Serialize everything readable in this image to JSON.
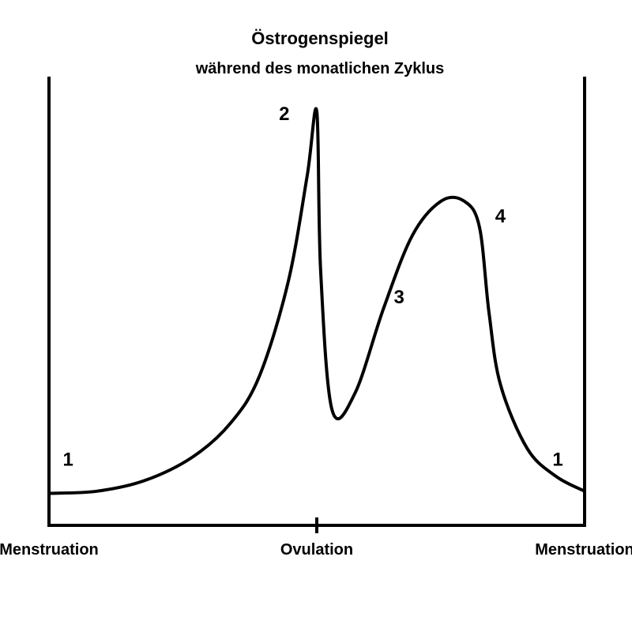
{
  "chart_data": {
    "type": "line",
    "title": "Östrogenspiegel",
    "subtitle": "während des monatlichen Zyklus",
    "xlabel": "",
    "ylabel": "",
    "x_ticks": [
      {
        "position": 0,
        "label": "Menstruation"
      },
      {
        "position": 14,
        "label": "Ovulation"
      },
      {
        "position": 28,
        "label": "Menstruation"
      }
    ],
    "xlim": [
      0,
      28
    ],
    "ylim": [
      0,
      100
    ],
    "grid": false,
    "legend": "none",
    "series": [
      {
        "x": [
          0,
          2.5,
          5,
          7.5,
          9.5,
          11,
          12.5,
          13.5,
          14,
          14.2,
          14.8,
          16,
          17.5,
          19,
          20.5,
          21.7,
          22.5,
          23,
          23.6,
          25,
          26.5,
          28
        ],
        "y": [
          7.5,
          8,
          10.5,
          16,
          24,
          35,
          57,
          82,
          97,
          60,
          27,
          31,
          51,
          68,
          76,
          76,
          70,
          50,
          33,
          18,
          11.5,
          8
        ]
      }
    ],
    "annotations": [
      {
        "text": "1",
        "x": 1,
        "y": 14
      },
      {
        "text": "2",
        "x": 12.3,
        "y": 95
      },
      {
        "text": "3",
        "x": 18.3,
        "y": 52
      },
      {
        "text": "4",
        "x": 23.6,
        "y": 71
      },
      {
        "text": "1",
        "x": 26.6,
        "y": 14
      }
    ],
    "colors": {
      "line": "#000000",
      "axes": "#000000",
      "text": "#000000"
    }
  }
}
